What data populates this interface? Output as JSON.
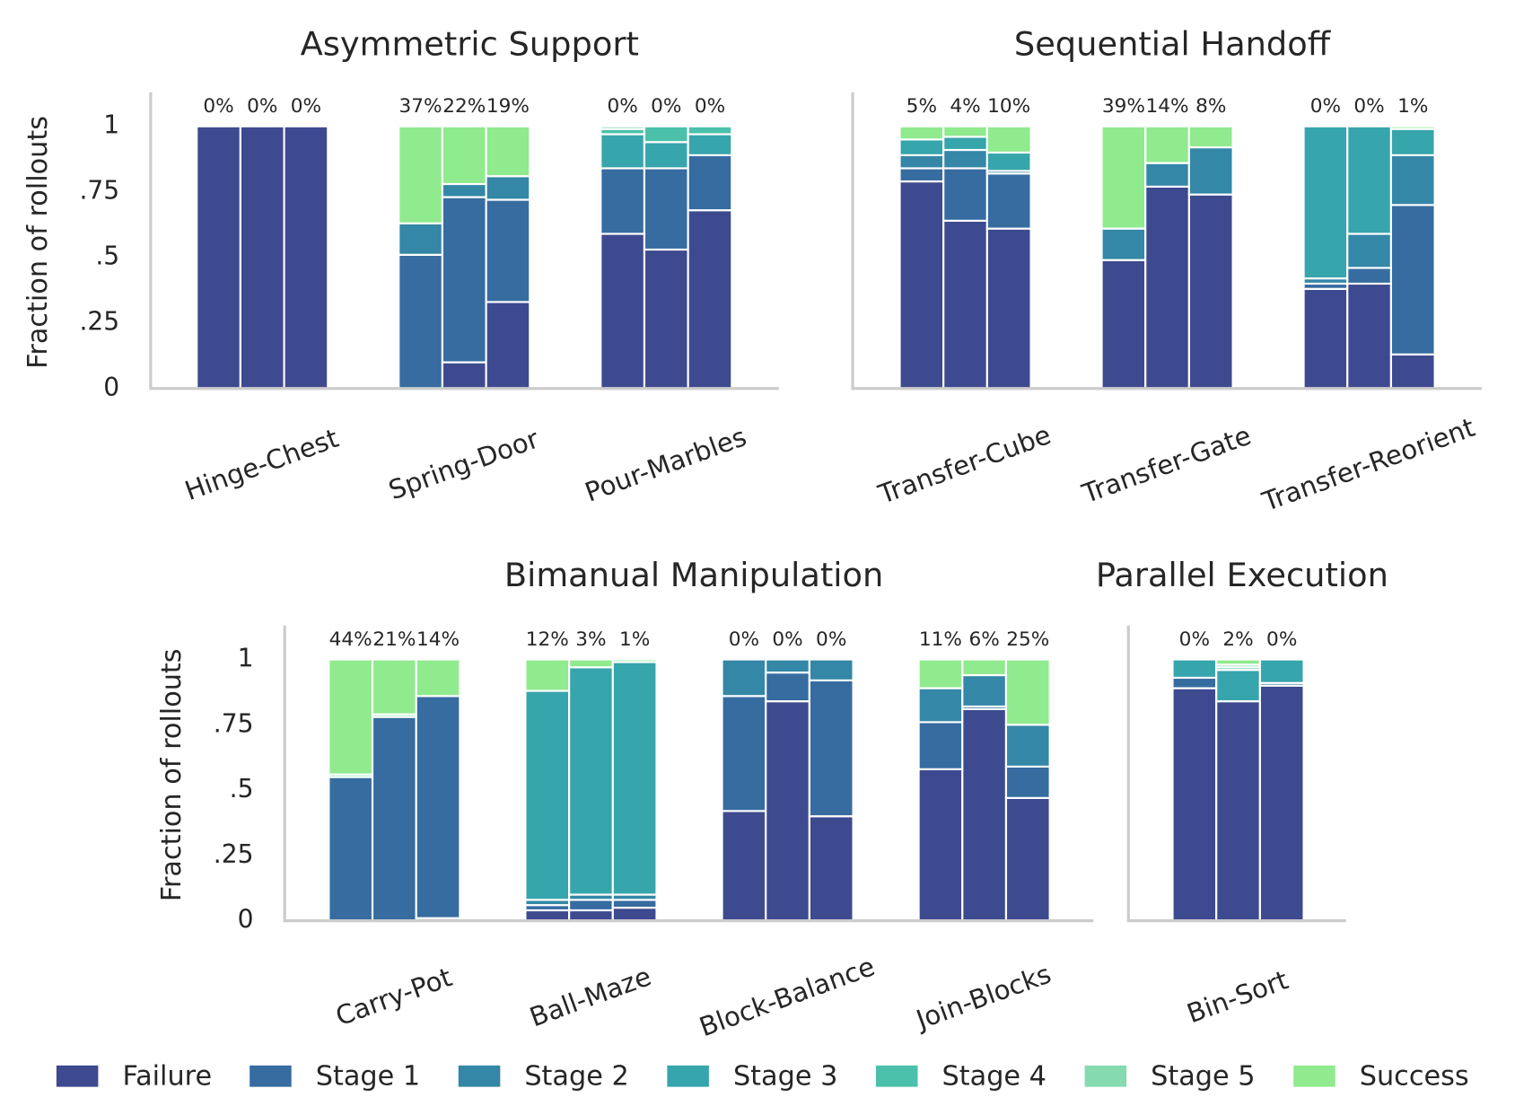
{
  "chart_data": [
    {
      "type": "stacked_bar",
      "title": "Asymmetric Support",
      "ylabel": "Fraction of rollouts",
      "categories": [
        "Hinge-Chest",
        "Spring-Door",
        "Pour-Marbles"
      ],
      "ylim": [
        0,
        1.13
      ],
      "yticks": [
        0,
        {
          "value": 0.25,
          "label": ".25"
        },
        {
          "value": 0.5,
          "label": ".5"
        },
        {
          "value": 0.75,
          "label": ".75"
        },
        1
      ],
      "series": [
        {
          "name": "Failure",
          "color": "#3e4a8f",
          "values": [
            [
              1,
              1,
              1
            ],
            [
              0,
              0.1,
              0.33
            ],
            [
              0.59,
              0.53,
              0.68
            ]
          ]
        },
        {
          "name": "Stage 1",
          "color": "#366ca0",
          "values": [
            [
              0,
              0,
              0
            ],
            [
              0.51,
              0.63,
              0.39
            ],
            [
              0.25,
              0.31,
              0.21
            ]
          ]
        },
        {
          "name": "Stage 2",
          "color": "#3487a6",
          "values": [
            [
              0,
              0,
              0
            ],
            [
              0.12,
              0.05,
              0.09
            ],
            [
              0,
              0,
              0
            ]
          ]
        },
        {
          "name": "Stage 3",
          "color": "#37a5ac",
          "values": [
            [
              0,
              0,
              0
            ],
            [
              0,
              0,
              0
            ],
            [
              0.13,
              0.1,
              0.08
            ]
          ]
        },
        {
          "name": "Stage 4",
          "color": "#4bc1ac",
          "values": [
            [
              0,
              0,
              0
            ],
            [
              0,
              0,
              0
            ],
            [
              0.02,
              0.06,
              0.03
            ]
          ]
        },
        {
          "name": "Stage 5",
          "color": "#85dbaf",
          "values": [
            [
              0,
              0,
              0
            ],
            [
              0,
              0,
              0
            ],
            [
              0.01,
              0,
              0
            ]
          ]
        },
        {
          "name": "Success",
          "color": "#90ea8e",
          "values": [
            [
              0,
              0,
              0
            ],
            [
              0.37,
              0.22,
              0.19
            ],
            [
              0,
              0,
              0
            ]
          ],
          "value_labels": [
            [
              "0%",
              "0%",
              "0%"
            ],
            [
              "37%",
              "22%",
              "19%"
            ],
            [
              "0%",
              "0%",
              "0%"
            ]
          ]
        }
      ]
    },
    {
      "type": "stacked_bar",
      "title": "Sequential Handoff",
      "categories": [
        "Transfer-Cube",
        "Transfer-Gate",
        "Transfer-Reorient"
      ],
      "ylim": [
        0,
        1.13
      ],
      "series": [
        {
          "name": "Failure",
          "color": "#3e4a8f",
          "values": [
            [
              0.79,
              0.64,
              0.61
            ],
            [
              0.49,
              0.77,
              0.74
            ],
            [
              0.38,
              0.4,
              0.13
            ]
          ]
        },
        {
          "name": "Stage 1",
          "color": "#366ca0",
          "values": [
            [
              0.05,
              0.2,
              0.21
            ],
            [
              0,
              0,
              0
            ],
            [
              0.02,
              0.06,
              0.57
            ]
          ]
        },
        {
          "name": "Stage 2",
          "color": "#3487a6",
          "values": [
            [
              0.05,
              0.07,
              0.01
            ],
            [
              0.12,
              0.09,
              0.18
            ],
            [
              0.02,
              0.13,
              0.19
            ]
          ]
        },
        {
          "name": "Stage 3",
          "color": "#37a5ac",
          "values": [
            [
              0.06,
              0.05,
              0.07
            ],
            [
              0,
              0,
              0
            ],
            [
              0.58,
              0.41,
              0.1
            ]
          ]
        },
        {
          "name": "Stage 4",
          "color": "#4bc1ac",
          "values": [
            [
              0,
              0,
              0
            ],
            [
              0,
              0,
              0
            ],
            [
              0,
              0,
              0
            ]
          ]
        },
        {
          "name": "Stage 5",
          "color": "#85dbaf",
          "values": [
            [
              0,
              0,
              0
            ],
            [
              0,
              0,
              0
            ],
            [
              0,
              0,
              0
            ]
          ]
        },
        {
          "name": "Success",
          "color": "#90ea8e",
          "values": [
            [
              0.05,
              0.04,
              0.1
            ],
            [
              0.39,
              0.14,
              0.08
            ],
            [
              0,
              0,
              0.01
            ]
          ],
          "value_labels": [
            [
              "5%",
              "4%",
              "10%"
            ],
            [
              "39%",
              "14%",
              "8%"
            ],
            [
              "0%",
              "0%",
              "1%"
            ]
          ]
        }
      ]
    },
    {
      "type": "stacked_bar",
      "title": "Bimanual Manipulation",
      "ylabel": "Fraction of rollouts",
      "categories": [
        "Carry-Pot",
        "Ball-Maze",
        "Block-Balance",
        "Join-Blocks"
      ],
      "ylim": [
        0,
        1.13
      ],
      "yticks": [
        0,
        {
          "value": 0.25,
          "label": ".25"
        },
        {
          "value": 0.5,
          "label": ".5"
        },
        {
          "value": 0.75,
          "label": ".75"
        },
        1
      ],
      "series": [
        {
          "name": "Failure",
          "color": "#3e4a8f",
          "values": [
            [
              0,
              0,
              0.01
            ],
            [
              0.04,
              0.04,
              0.05
            ],
            [
              0.42,
              0.84,
              0.4
            ],
            [
              0.58,
              0.81,
              0.47
            ]
          ]
        },
        {
          "name": "Stage 1",
          "color": "#366ca0",
          "values": [
            [
              0.55,
              0.78,
              0.85
            ],
            [
              0.02,
              0.04,
              0.03
            ],
            [
              0.44,
              0.11,
              0.52
            ],
            [
              0.18,
              0.01,
              0.12
            ]
          ]
        },
        {
          "name": "Stage 2",
          "color": "#3487a6",
          "values": [
            [
              0,
              0,
              0
            ],
            [
              0.02,
              0.02,
              0.02
            ],
            [
              0.14,
              0.05,
              0.08
            ],
            [
              0.13,
              0.12,
              0.16
            ]
          ]
        },
        {
          "name": "Stage 3",
          "color": "#37a5ac",
          "values": [
            [
              0,
              0,
              0
            ],
            [
              0.8,
              0.87,
              0.89
            ],
            [
              0,
              0,
              0
            ],
            [
              0,
              0,
              0
            ]
          ]
        },
        {
          "name": "Stage 4",
          "color": "#4bc1ac",
          "values": [
            [
              0,
              0,
              0
            ],
            [
              0,
              0,
              0
            ],
            [
              0,
              0,
              0
            ],
            [
              0,
              0,
              0
            ]
          ]
        },
        {
          "name": "Stage 5",
          "color": "#85dbaf",
          "values": [
            [
              0.01,
              0.01,
              0
            ],
            [
              0,
              0,
              0
            ],
            [
              0,
              0,
              0
            ],
            [
              0,
              0,
              0
            ]
          ]
        },
        {
          "name": "Success",
          "color": "#90ea8e",
          "values": [
            [
              0.44,
              0.21,
              0.14
            ],
            [
              0.12,
              0.03,
              0.01
            ],
            [
              0,
              0,
              0
            ],
            [
              0.11,
              0.06,
              0.25
            ]
          ],
          "value_labels": [
            [
              "44%",
              "21%",
              "14%"
            ],
            [
              "12%",
              "3%",
              "1%"
            ],
            [
              "0%",
              "0%",
              "0%"
            ],
            [
              "11%",
              "6%",
              "25%"
            ]
          ]
        }
      ]
    },
    {
      "type": "stacked_bar",
      "title": "Parallel Execution",
      "categories": [
        "Bin-Sort"
      ],
      "ylim": [
        0,
        1.13
      ],
      "series": [
        {
          "name": "Failure",
          "color": "#3e4a8f",
          "values": [
            [
              0.89,
              0.84,
              0.9
            ]
          ]
        },
        {
          "name": "Stage 1",
          "color": "#366ca0",
          "values": [
            [
              0.04,
              0,
              0.01
            ]
          ]
        },
        {
          "name": "Stage 2",
          "color": "#3487a6",
          "values": [
            [
              0,
              0,
              0
            ]
          ]
        },
        {
          "name": "Stage 3",
          "color": "#37a5ac",
          "values": [
            [
              0.07,
              0.12,
              0.09
            ]
          ]
        },
        {
          "name": "Stage 4",
          "color": "#4bc1ac",
          "values": [
            [
              0,
              0.01,
              0
            ]
          ]
        },
        {
          "name": "Stage 5",
          "color": "#85dbaf",
          "values": [
            [
              0,
              0.01,
              0
            ]
          ]
        },
        {
          "name": "Success",
          "color": "#90ea8e",
          "values": [
            [
              0,
              0.02,
              0
            ]
          ],
          "value_labels": [
            [
              "0%",
              "2%",
              "0%"
            ]
          ]
        }
      ]
    }
  ]
}
